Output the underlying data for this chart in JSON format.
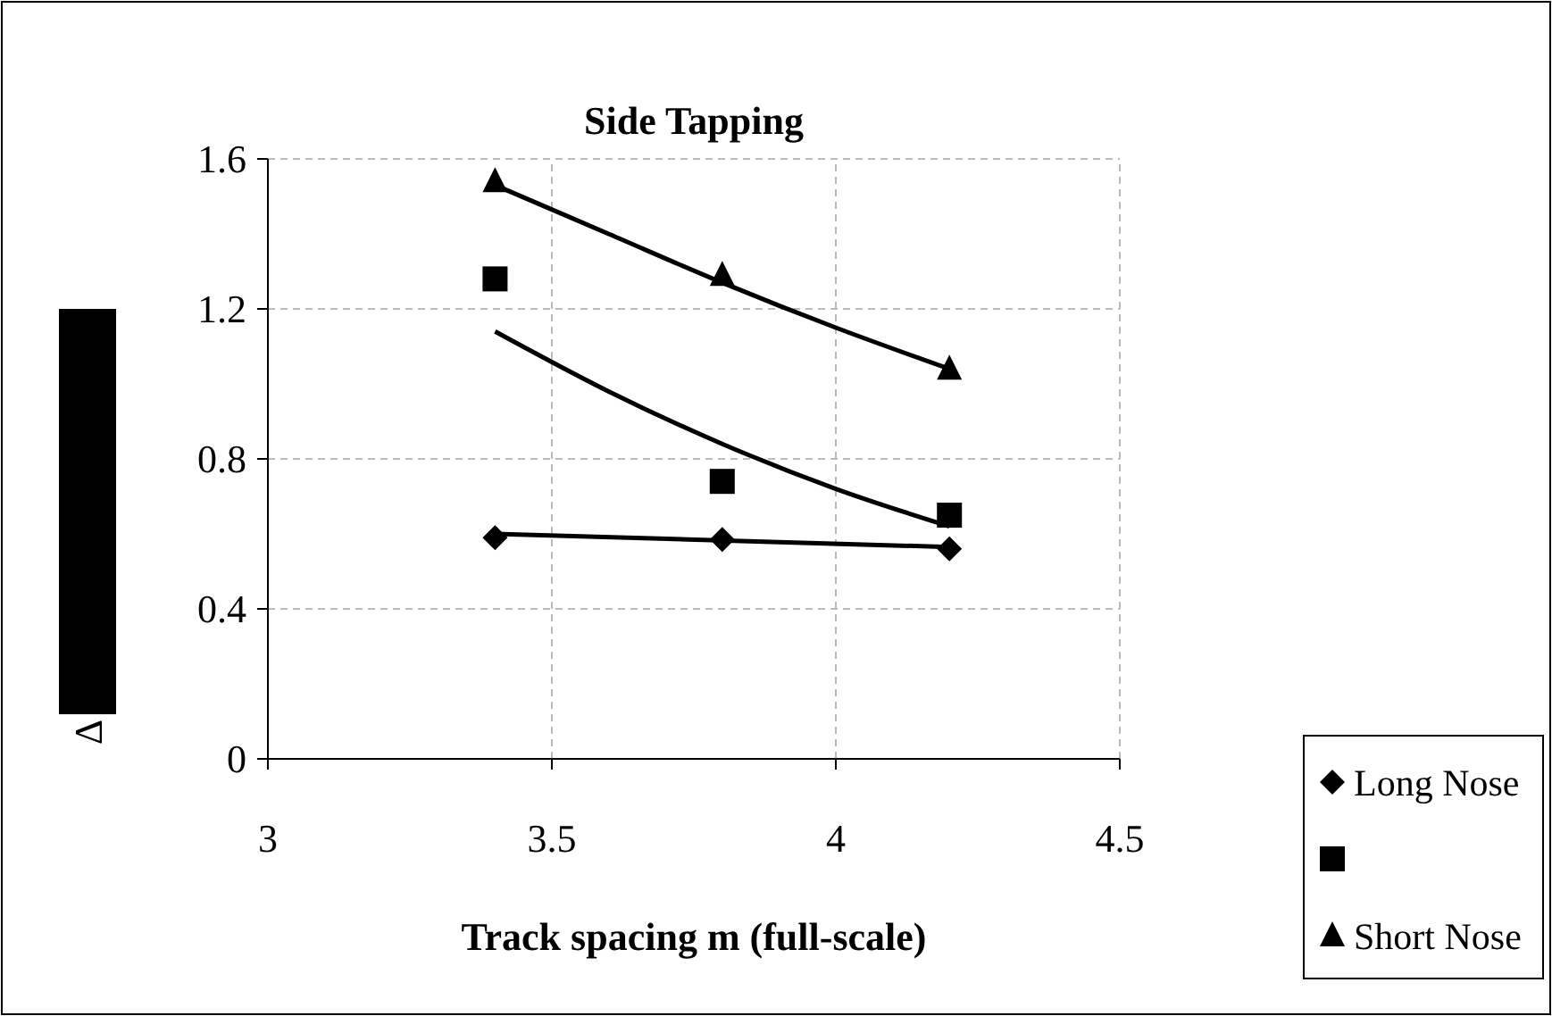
{
  "chart_data": {
    "type": "scatter",
    "title": "Side Tapping",
    "xlabel": "Track spacing m (full-scale)",
    "ylabel": "Δ",
    "xlim": [
      3,
      4.5
    ],
    "xticks": [
      3,
      3.5,
      4,
      4.5
    ],
    "ylim": [
      0,
      1.6
    ],
    "yticks": [
      0,
      0.4,
      0.8,
      1.2,
      1.6
    ],
    "grid": true,
    "legend": "bottom right",
    "series": [
      {
        "name": "Long Nose",
        "color": "#000000",
        "marker": "diamond",
        "x": [
          3.4,
          3.8,
          4.2
        ],
        "values": [
          0.59,
          0.585,
          0.56
        ]
      },
      {
        "color": "#000000",
        "marker": "square",
        "x": [
          3.4,
          3.8,
          4.2
        ],
        "values": [
          1.28,
          0.74,
          0.65
        ]
      },
      {
        "name": "Short Nose",
        "color": "#000000",
        "marker": "triangle",
        "x": [
          3.4,
          3.8,
          4.2
        ],
        "values": [
          1.54,
          1.29,
          1.04
        ]
      },
      {
        "type": "line",
        "color": "#000000",
        "x": [
          3.4,
          4.2
        ],
        "values": [
          0.6,
          0.565
        ]
      },
      {
        "type": "line",
        "color": "#000000",
        "x": [
          3.4,
          3.6,
          3.8,
          4.0,
          4.2
        ],
        "values": [
          1.14,
          0.98,
          0.84,
          0.72,
          0.62
        ]
      },
      {
        "type": "line",
        "color": "#000000",
        "x": [
          3.4,
          3.6,
          3.8,
          4.0,
          4.2
        ],
        "values": [
          1.53,
          1.4,
          1.27,
          1.15,
          1.04
        ]
      }
    ]
  }
}
